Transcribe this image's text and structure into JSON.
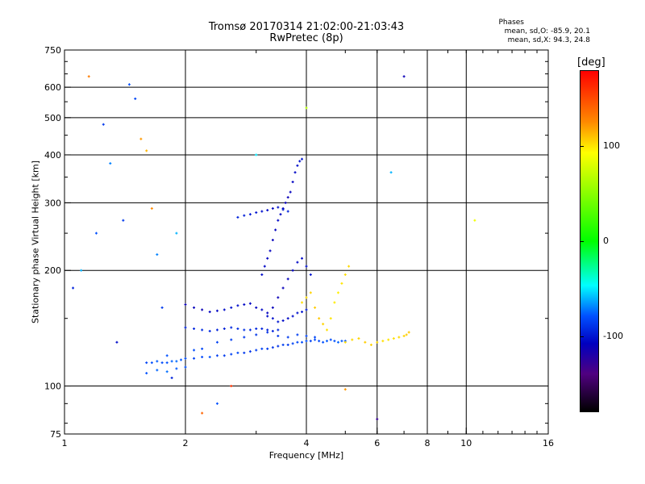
{
  "header": {
    "title": "Tromsø 20170314 21:02:00-21:03:43",
    "subtitle": "RwPretec (8p)",
    "phases_title": "Phases",
    "phases_o": "mean, sd,O: -85.9, 20.1",
    "phases_x": "mean, sd,X:  94.3, 24.8"
  },
  "colorbar": {
    "unit": "[deg]",
    "ticks": [
      "100",
      "0",
      "-100"
    ],
    "tick_values": [
      100,
      0,
      -100
    ],
    "range": [
      -180,
      180
    ],
    "colors": [
      "#000000",
      "#500080",
      "#0000c0",
      "#0050ff",
      "#00ffff",
      "#00ff00",
      "#ffff00",
      "#ff8a00",
      "#ff0000"
    ]
  },
  "chart_data": {
    "type": "scatter",
    "title": "Tromsø 20170314 21:02:00-21:03:43",
    "subtitle": "RwPretec (8p)",
    "xlabel": "Frequency [MHz]",
    "ylabel": "Stationary phase Virtual Height [km]",
    "xscale": "log",
    "yscale": "log",
    "xlim": [
      1,
      16
    ],
    "ylim": [
      75,
      750
    ],
    "xticks": [
      1,
      2,
      4,
      6,
      8,
      10,
      16
    ],
    "xtick_labels": [
      "1",
      "2",
      "4",
      "6",
      "8",
      "10",
      "16"
    ],
    "yticks": [
      75,
      100,
      200,
      300,
      400,
      500,
      600,
      750
    ],
    "ytick_labels": [
      "75",
      "100",
      "200",
      "300",
      "400",
      "500",
      "600",
      "750"
    ],
    "grid_x": [
      2,
      4,
      6,
      8,
      10
    ],
    "grid_y": [
      100,
      200,
      300,
      400,
      500,
      600
    ],
    "grid": true,
    "color_variable": "phase [deg]",
    "series": [
      {
        "x": [
          1.6,
          1.65,
          1.7,
          1.75,
          1.8,
          1.85,
          1.9,
          1.95,
          2.0,
          2.1,
          2.2,
          2.3,
          2.4,
          2.5,
          2.6,
          2.7,
          2.8,
          2.9,
          3.0,
          3.1,
          3.2,
          3.3,
          3.4,
          3.5,
          3.6,
          3.7,
          3.8,
          3.9,
          4.0,
          4.1,
          4.2,
          4.3,
          4.4,
          4.5,
          4.6,
          4.7,
          4.8,
          4.9,
          5.0
        ],
        "y": [
          115,
          115,
          116,
          115,
          115,
          116,
          116,
          117,
          118,
          118,
          119,
          119,
          120,
          120,
          121,
          122,
          122,
          123,
          124,
          125,
          125,
          126,
          127,
          128,
          128,
          129,
          130,
          130,
          131,
          131,
          132,
          131,
          130,
          131,
          132,
          131,
          130,
          131,
          131
        ],
        "phase": [
          -85,
          -80,
          -78,
          -82,
          -80,
          -76,
          -75,
          -78,
          -82,
          -86,
          -84,
          -80,
          -88,
          -90,
          -86,
          -84,
          -90,
          -92,
          -88,
          -86,
          -90,
          -92,
          -94,
          -88,
          -90,
          -86,
          -84,
          -82,
          -80,
          -86,
          -82,
          -84,
          -80,
          -78,
          -82,
          -80,
          -76,
          -78,
          -80
        ]
      },
      {
        "x": [
          1.6,
          1.7,
          1.8,
          1.9,
          2.0,
          2.1,
          2.2,
          2.4,
          2.6,
          2.8,
          3.0,
          3.2,
          3.4,
          3.6,
          3.8,
          4.0,
          4.2
        ],
        "y": [
          108,
          110,
          109,
          111,
          112,
          124,
          125,
          130,
          132,
          134,
          136,
          138,
          135,
          134,
          136,
          135,
          134
        ],
        "phase": [
          -80,
          -76,
          -74,
          -78,
          -80,
          -82,
          -84,
          -86,
          -88,
          -90,
          -92,
          -94,
          -92,
          -90,
          -88,
          -86,
          -84
        ]
      },
      {
        "x": [
          2.0,
          2.1,
          2.2,
          2.3,
          2.4,
          2.5,
          2.6,
          2.7,
          2.8,
          2.9,
          3.0,
          3.1,
          3.2,
          3.3,
          3.4,
          3.5,
          3.6,
          3.7,
          3.8,
          3.9,
          4.0
        ],
        "y": [
          163,
          160,
          158,
          156,
          157,
          158,
          160,
          162,
          163,
          164,
          160,
          158,
          152,
          150,
          147,
          148,
          150,
          152,
          155,
          156,
          158
        ],
        "phase": [
          -120,
          -118,
          -120,
          -115,
          -112,
          -110,
          -108,
          -110,
          -112,
          -114,
          -116,
          -112,
          -110,
          -108,
          -106,
          -110,
          -112,
          -110,
          -108,
          -106,
          -104
        ]
      },
      {
        "x": [
          2.0,
          2.1,
          2.2,
          2.3,
          2.4,
          2.5,
          2.6,
          2.7,
          2.8,
          2.9,
          3.0,
          3.1,
          3.2,
          3.3,
          3.4
        ],
        "y": [
          142,
          141,
          140,
          139,
          140,
          141,
          142,
          141,
          140,
          140,
          141,
          141,
          140,
          139,
          140
        ],
        "phase": [
          -100,
          -98,
          -96,
          -98,
          -100,
          -102,
          -98,
          -96,
          -94,
          -96,
          -98,
          -100,
          -102,
          -100,
          -98
        ]
      },
      {
        "x": [
          3.1,
          3.15,
          3.2,
          3.25,
          3.3,
          3.35,
          3.4,
          3.45,
          3.5,
          3.55,
          3.6,
          3.65,
          3.7,
          3.75,
          3.8,
          3.85,
          3.9
        ],
        "y": [
          195,
          205,
          215,
          225,
          240,
          255,
          270,
          280,
          290,
          300,
          310,
          320,
          340,
          360,
          375,
          385,
          390
        ],
        "phase": [
          -110,
          -112,
          -114,
          -116,
          -118,
          -115,
          -112,
          -114,
          -116,
          -118,
          -120,
          -116,
          -114,
          -112,
          -110,
          -108,
          -106
        ]
      },
      {
        "x": [
          2.7,
          2.8,
          2.9,
          3.0,
          3.1,
          3.2,
          3.3,
          3.4,
          3.5,
          3.6
        ],
        "y": [
          275,
          278,
          280,
          283,
          285,
          287,
          290,
          292,
          288,
          285
        ],
        "phase": [
          -100,
          -102,
          -104,
          -106,
          -108,
          -110,
          -112,
          -108,
          -104,
          -100
        ]
      },
      {
        "x": [
          3.2,
          3.3,
          3.4,
          3.5,
          3.6,
          3.7,
          3.8,
          3.9,
          4.0,
          4.1
        ],
        "y": [
          155,
          160,
          170,
          180,
          190,
          200,
          210,
          215,
          205,
          195
        ],
        "phase": [
          -116,
          -118,
          -120,
          -118,
          -116,
          -114,
          -112,
          -110,
          -108,
          -106
        ]
      },
      {
        "x": [
          3.9,
          4.0,
          4.1,
          4.2,
          4.3,
          4.4,
          4.5,
          4.6,
          4.7,
          4.8,
          4.9,
          5.0,
          5.1
        ],
        "y": [
          165,
          170,
          175,
          160,
          150,
          145,
          140,
          150,
          165,
          175,
          185,
          195,
          205
        ],
        "phase": [
          96,
          98,
          100,
          102,
          104,
          100,
          96,
          94,
          92,
          90,
          94,
          96,
          98
        ]
      },
      {
        "x": [
          5.0,
          5.2,
          5.4,
          5.6,
          5.8,
          6.0,
          6.2,
          6.4,
          6.6,
          6.8,
          7.0,
          7.1,
          7.2
        ],
        "y": [
          130,
          132,
          133,
          130,
          128,
          130,
          131,
          132,
          133,
          134,
          135,
          136,
          138
        ],
        "phase": [
          96,
          98,
          100,
          102,
          100,
          98,
          96,
          94,
          96,
          98,
          100,
          102,
          104
        ]
      },
      {
        "x": [
          1.05,
          1.1,
          1.15,
          1.2,
          1.25,
          1.3,
          1.35,
          1.4,
          1.45,
          1.5,
          1.55,
          1.6,
          1.65,
          1.7,
          1.75,
          1.8,
          1.85,
          1.9,
          2.2,
          2.4,
          2.6,
          3.0,
          4.0,
          5.0,
          6.0,
          6.5,
          7.0,
          10.5
        ],
        "y": [
          180,
          200,
          640,
          250,
          480,
          380,
          130,
          270,
          610,
          560,
          440,
          410,
          290,
          220,
          160,
          120,
          105,
          250,
          85,
          90,
          100,
          400,
          530,
          98,
          82,
          360,
          640,
          270
        ],
        "phase": [
          -100,
          -60,
          130,
          -80,
          -90,
          -70,
          -110,
          -90,
          -80,
          -85,
          120,
          110,
          125,
          -70,
          -90,
          -80,
          -100,
          -60,
          140,
          -80,
          160,
          -50,
          60,
          120,
          -140,
          -60,
          -120,
          80
        ]
      }
    ]
  }
}
